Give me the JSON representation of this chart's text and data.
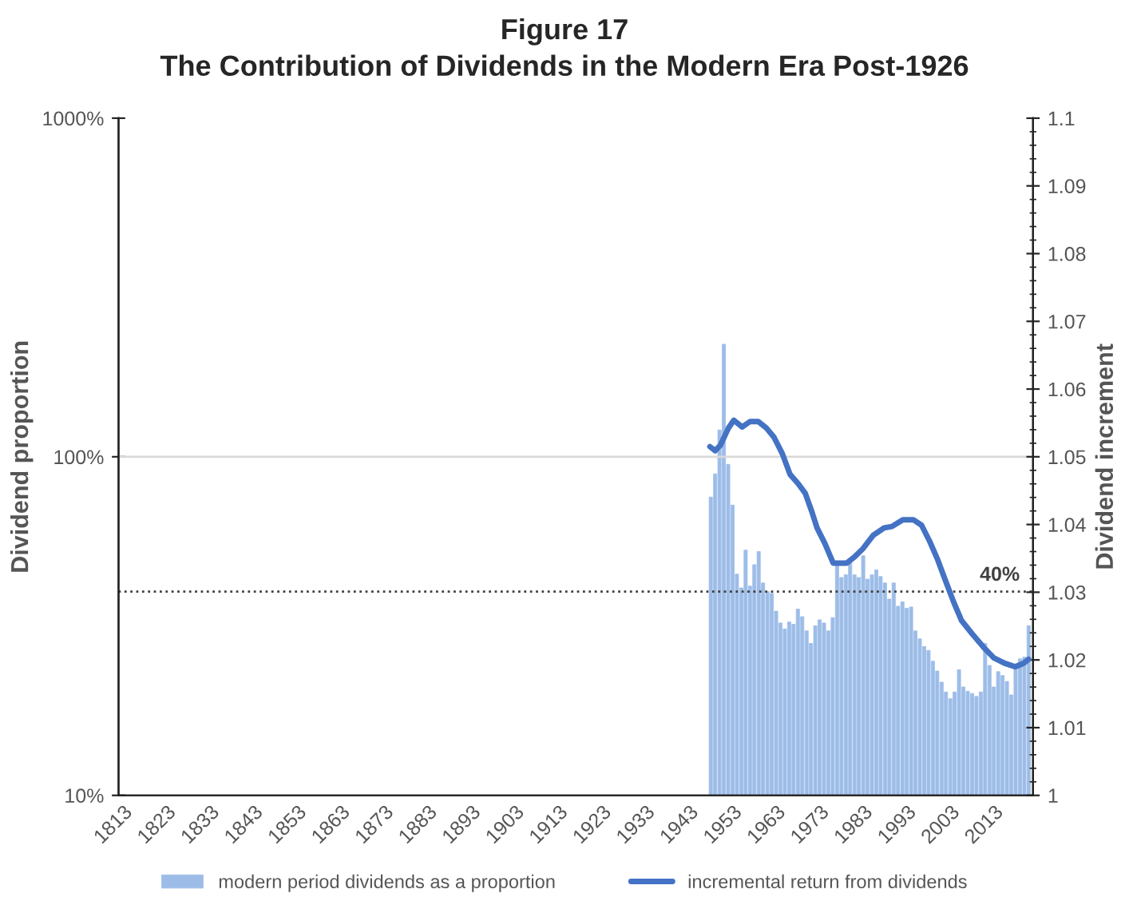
{
  "chart_data": {
    "type": "bar",
    "title": "Figure 17",
    "subtitle": "The Contribution of Dividends in the Modern Era Post-1926",
    "ylabel": "Dividend proportion",
    "y2label": "Dividend increment",
    "log": "y",
    "legend": "bottom",
    "xlim": [
      1812,
      2022
    ],
    "xticks": [
      1813,
      1823,
      1833,
      1843,
      1853,
      1863,
      1873,
      1883,
      1893,
      1903,
      1913,
      1923,
      1933,
      1943,
      1953,
      1963,
      1973,
      1983,
      1993,
      2003,
      2013
    ],
    "ylim": [
      10,
      1000
    ],
    "yticks": [
      {
        "value": 10,
        "label": "10%"
      },
      {
        "value": 100,
        "label": "100%"
      },
      {
        "value": 1000,
        "label": "1000%"
      }
    ],
    "y2lim": [
      1,
      1.1
    ],
    "y2ticks": [
      1,
      1.01,
      1.02,
      1.03,
      1.04,
      1.05,
      1.06,
      1.07,
      1.08,
      1.09,
      1.1
    ],
    "ref_lines": [
      {
        "axis": "y",
        "value": 100,
        "line_style": "solid",
        "color": "#d9d9d9"
      },
      {
        "axis": "y",
        "value": 40,
        "label": "40%",
        "line_style": "dotted",
        "color": "#404040"
      }
    ],
    "series": [
      {
        "name": "modern period dividends as a proportion",
        "color": "#9dbde8",
        "x": [
          1948,
          1949,
          1950,
          1951,
          1952,
          1953,
          1954,
          1955,
          1956,
          1957,
          1958,
          1959,
          1960,
          1961,
          1962,
          1963,
          1964,
          1965,
          1966,
          1967,
          1968,
          1969,
          1970,
          1971,
          1972,
          1973,
          1974,
          1975,
          1976,
          1977,
          1978,
          1979,
          1980,
          1981,
          1982,
          1983,
          1984,
          1985,
          1986,
          1987,
          1988,
          1989,
          1990,
          1991,
          1992,
          1993,
          1994,
          1995,
          1996,
          1997,
          1998,
          1999,
          2000,
          2001,
          2002,
          2003,
          2004,
          2005,
          2006,
          2007,
          2008,
          2009,
          2010,
          2011,
          2012,
          2013,
          2014,
          2015,
          2016,
          2017,
          2018,
          2019,
          2020,
          2021
        ],
        "values": [
          76,
          89,
          120,
          215,
          95,
          72,
          45,
          41,
          53,
          41.5,
          48,
          52.5,
          42.4,
          40,
          39.5,
          35,
          32.3,
          31,
          32.5,
          32,
          35.5,
          33.7,
          30.6,
          28.1,
          31.7,
          33,
          32.3,
          30.6,
          33.5,
          48,
          44,
          44.8,
          49,
          44.8,
          44,
          51,
          43.5,
          44.8,
          46.3,
          44.3,
          42.4,
          38,
          42.4,
          36.2,
          37.3,
          35.7,
          36,
          30.6,
          29,
          27.5,
          26.8,
          24.9,
          23.3,
          21.6,
          20.2,
          19.3,
          20.2,
          23.5,
          20.9,
          20.3,
          20,
          19.6,
          20.2,
          28.1,
          24.2,
          20.9,
          23.2,
          22.6,
          21.7,
          19.8,
          24.2,
          25.3,
          25.6,
          31.7
        ]
      },
      {
        "name": "incremental return from dividends",
        "type": "line",
        "axis": "y2",
        "color": "#4472c4",
        "x": [
          1947.8,
          1949.0,
          1950.2,
          1952.1,
          1953.3,
          1955.2,
          1957.0,
          1958.9,
          1960.7,
          1962.5,
          1964.4,
          1966.2,
          1968.1,
          1969.7,
          1971.2,
          1972.4,
          1974.2,
          1976.1,
          1979.2,
          1981.0,
          1982.9,
          1985.3,
          1987.8,
          1989.6,
          1992.1,
          1994.5,
          1996.4,
          1998.2,
          2000.1,
          2001.9,
          2003.8,
          2005.6,
          2008.1,
          2010.6,
          2013.0,
          2015.5,
          2017.9,
          2019.8,
          2021
        ],
        "values": [
          1.0515,
          1.0509,
          1.0517,
          1.0543,
          1.0554,
          1.0544,
          1.0552,
          1.0552,
          1.0543,
          1.0529,
          1.0505,
          1.0474,
          1.046,
          1.0446,
          1.0419,
          1.0395,
          1.0372,
          1.0343,
          1.0343,
          1.0352,
          1.0364,
          1.0384,
          1.0395,
          1.0397,
          1.0407,
          1.0407,
          1.0399,
          1.0376,
          1.0348,
          1.0317,
          1.0285,
          1.0258,
          1.0238,
          1.0219,
          1.0203,
          1.0195,
          1.019,
          1.0195,
          1.0201
        ]
      }
    ]
  }
}
